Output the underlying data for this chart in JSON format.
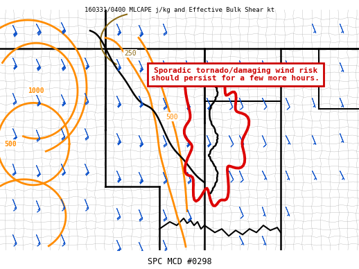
{
  "title_top": "160331/0400 MLCAPE j/kg and Effective Bulk Shear kt",
  "title_bottom": "SPC MCD #0298",
  "annotation_text": "Sporadic tornado/damaging wind risk\nshould persist for a few more hours.",
  "bg_color": "#ffffff",
  "annotation_text_color": "#cc0000",
  "annotation_border_color": "#cc0000",
  "orange_color": "#ff8c00",
  "brown_color": "#8b6914",
  "barb_color": "#1155cc",
  "state_line_color": "#000000",
  "county_line_color": "#aaaaaa",
  "red_outline_color": "#dd0000",
  "fig_width": 5.18,
  "fig_height": 3.88,
  "dpi": 100
}
